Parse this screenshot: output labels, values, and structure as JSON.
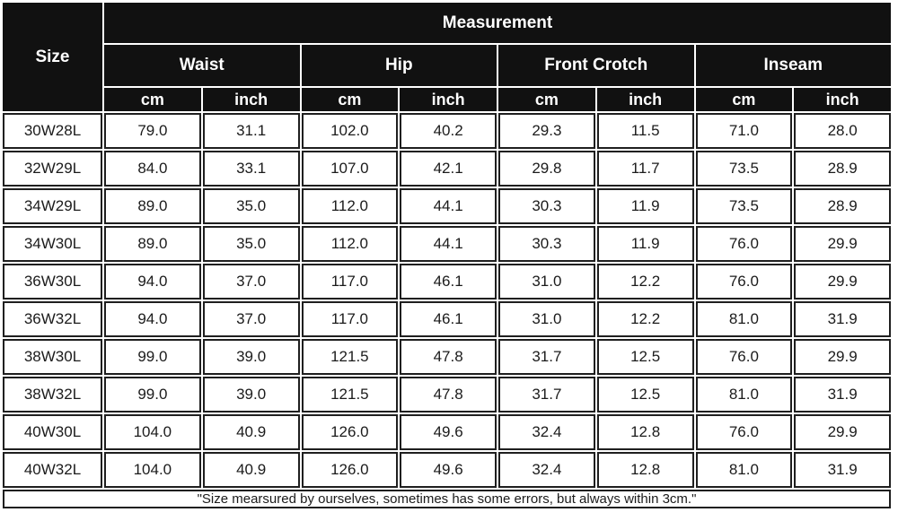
{
  "chart_data": {
    "type": "table",
    "title": "Measurement",
    "corner_label": "Size",
    "column_groups": [
      "Waist",
      "Hip",
      "Front Crotch",
      "Inseam"
    ],
    "unit_row": [
      "cm",
      "inch",
      "cm",
      "inch",
      "cm",
      "inch",
      "cm",
      "inch"
    ],
    "rows": [
      {
        "size": "30W28L",
        "values": [
          "79.0",
          "31.1",
          "102.0",
          "40.2",
          "29.3",
          "11.5",
          "71.0",
          "28.0"
        ]
      },
      {
        "size": "32W29L",
        "values": [
          "84.0",
          "33.1",
          "107.0",
          "42.1",
          "29.8",
          "11.7",
          "73.5",
          "28.9"
        ]
      },
      {
        "size": "34W29L",
        "values": [
          "89.0",
          "35.0",
          "112.0",
          "44.1",
          "30.3",
          "11.9",
          "73.5",
          "28.9"
        ]
      },
      {
        "size": "34W30L",
        "values": [
          "89.0",
          "35.0",
          "112.0",
          "44.1",
          "30.3",
          "11.9",
          "76.0",
          "29.9"
        ]
      },
      {
        "size": "36W30L",
        "values": [
          "94.0",
          "37.0",
          "117.0",
          "46.1",
          "31.0",
          "12.2",
          "76.0",
          "29.9"
        ]
      },
      {
        "size": "36W32L",
        "values": [
          "94.0",
          "37.0",
          "117.0",
          "46.1",
          "31.0",
          "12.2",
          "81.0",
          "31.9"
        ]
      },
      {
        "size": "38W30L",
        "values": [
          "99.0",
          "39.0",
          "121.5",
          "47.8",
          "31.7",
          "12.5",
          "76.0",
          "29.9"
        ]
      },
      {
        "size": "38W32L",
        "values": [
          "99.0",
          "39.0",
          "121.5",
          "47.8",
          "31.7",
          "12.5",
          "81.0",
          "31.9"
        ]
      },
      {
        "size": "40W30L",
        "values": [
          "104.0",
          "40.9",
          "126.0",
          "49.6",
          "32.4",
          "12.8",
          "76.0",
          "29.9"
        ]
      },
      {
        "size": "40W32L",
        "values": [
          "104.0",
          "40.9",
          "126.0",
          "49.6",
          "32.4",
          "12.8",
          "81.0",
          "31.9"
        ]
      }
    ],
    "footnote": "\"Size mearsured by ourselves, sometimes has some errors, but always within 3cm.\""
  },
  "colors": {
    "header_bg": "#111111",
    "header_text": "#ffffff",
    "body_bg": "#ffffff",
    "body_text": "#1b1b1b",
    "border": "#1f1f1f"
  }
}
